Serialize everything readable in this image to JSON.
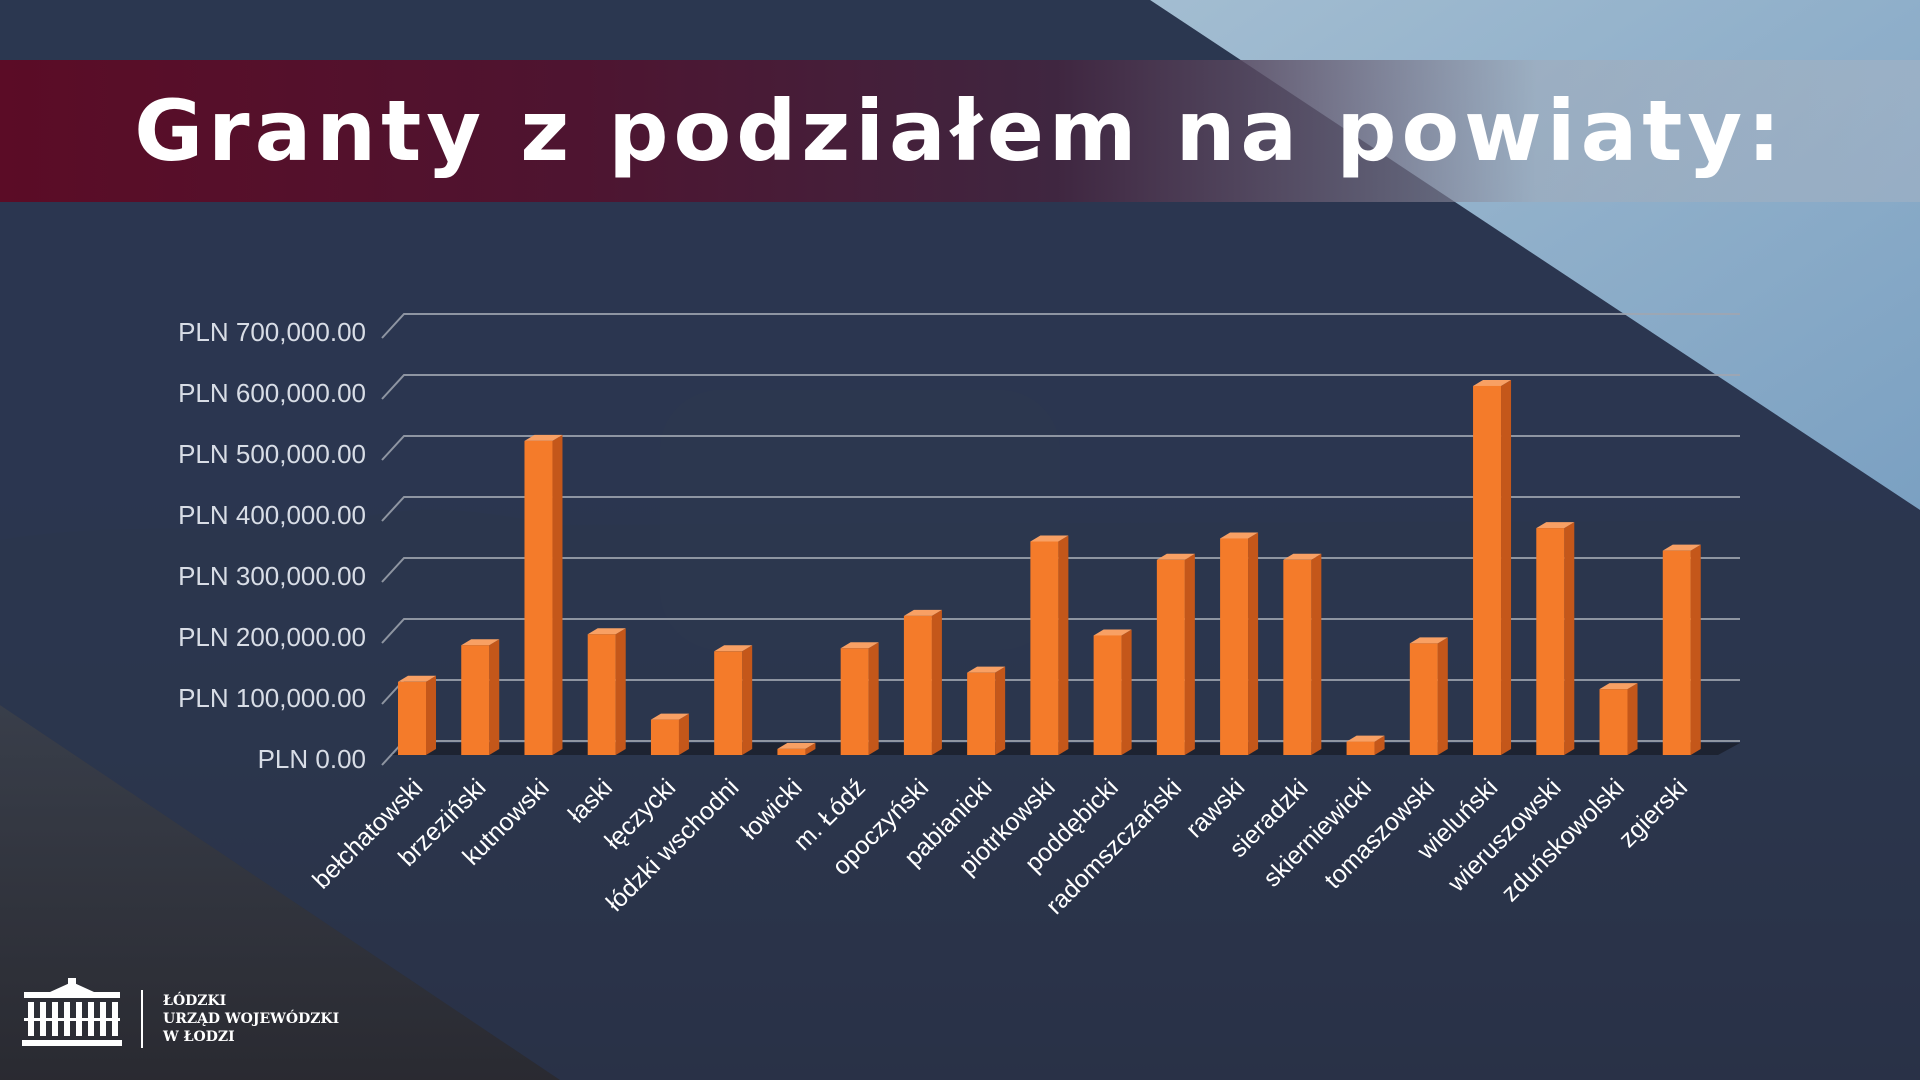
{
  "slide": {
    "title": "Granty z podziałem na powiaty:"
  },
  "logo": {
    "line1": "ŁÓDZKI",
    "line2": "URZĄD WOJEWÓDZKI",
    "line3": "W ŁODZI"
  },
  "colors": {
    "bar_front": "#f47b2a",
    "bar_side": "#c4571a",
    "bar_top": "#f8a064",
    "grid": "#a0a6b0",
    "axis_text": "#d8dde6"
  },
  "chart_data": {
    "type": "bar",
    "title": "",
    "xlabel": "",
    "ylabel": "",
    "ylim": [
      0,
      700000
    ],
    "yticks": [
      "PLN 0.00",
      "PLN 100,000.00",
      "PLN 200,000.00",
      "PLN 300,000.00",
      "PLN 400,000.00",
      "PLN 500,000.00",
      "PLN 600,000.00",
      "PLN 700,000.00"
    ],
    "categories": [
      "bełchatowski",
      "brzeziński",
      "kutnowski",
      "łaski",
      "łęczycki",
      "łódzki wschodni",
      "łowicki",
      "m. Łódź",
      "opoczyński",
      "pabianicki",
      "piotrkowski",
      "poddębicki",
      "radomszczański",
      "rawski",
      "sieradzki",
      "skierniewicki",
      "tomaszowski",
      "wieluński",
      "wieruszowski",
      "zduńskowolski",
      "zgierski"
    ],
    "values": [
      120000,
      180000,
      515000,
      198000,
      58000,
      170000,
      10000,
      175000,
      228000,
      135000,
      350000,
      196000,
      320000,
      355000,
      320000,
      22000,
      183000,
      605000,
      372000,
      108000,
      335000
    ],
    "grid": true,
    "legend": "none",
    "style": "3d-bars"
  }
}
